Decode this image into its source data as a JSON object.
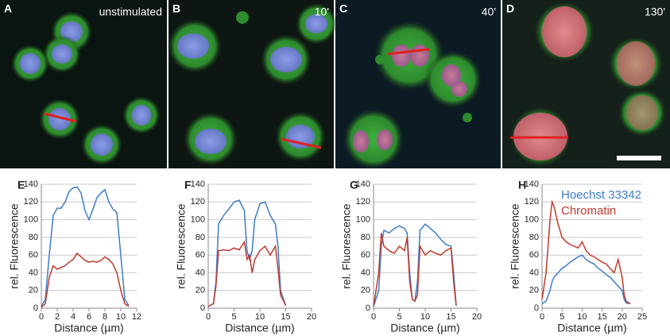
{
  "panels": [
    {
      "label": "A",
      "caption": "unstimulated"
    },
    {
      "label": "B",
      "caption": "10'"
    },
    {
      "label": "C",
      "caption": "40'"
    },
    {
      "label": "D",
      "caption": "130'"
    }
  ],
  "chart_data": [
    {
      "type": "line",
      "title": "E",
      "x_label": "Distance (µm)",
      "y_label": "rel. Fluorescence",
      "x": [
        0,
        0.5,
        1,
        1.5,
        2,
        2.5,
        3,
        3.5,
        4,
        4.5,
        5,
        5.5,
        6,
        6.5,
        7,
        7.5,
        8,
        8.5,
        9,
        9.5,
        10,
        10.5,
        11
      ],
      "series": [
        {
          "name": "Hoechst 33342",
          "color": "#3d7cc9",
          "values": [
            2,
            10,
            60,
            105,
            113,
            113,
            120,
            132,
            136,
            137,
            130,
            110,
            100,
            112,
            125,
            130,
            134,
            120,
            112,
            108,
            60,
            10,
            3
          ]
        },
        {
          "name": "Chromatin",
          "color": "#c0392b",
          "values": [
            1,
            5,
            35,
            48,
            44,
            46,
            48,
            52,
            55,
            62,
            58,
            54,
            52,
            53,
            52,
            54,
            58,
            55,
            50,
            40,
            20,
            5,
            2
          ]
        }
      ],
      "xlim": [
        0,
        12
      ],
      "xticks": [
        0,
        2,
        4,
        6,
        8,
        10,
        12
      ],
      "ylim": [
        0,
        140
      ],
      "yticks": [
        0,
        20,
        40,
        60,
        80,
        100,
        120,
        140
      ],
      "grid": true
    },
    {
      "type": "line",
      "title": "F",
      "x_label": "Distance (µm)",
      "y_label": "rel. Fluorescence",
      "x": [
        0,
        1,
        1.5,
        2,
        3,
        4,
        5,
        6,
        7,
        7.5,
        8,
        8.5,
        9,
        10,
        11,
        12,
        13,
        13.5,
        14,
        15
      ],
      "series": [
        {
          "name": "Hoechst 33342",
          "color": "#3d7cc9",
          "values": [
            2,
            5,
            30,
            95,
            105,
            112,
            120,
            122,
            110,
            65,
            55,
            65,
            100,
            118,
            120,
            105,
            95,
            70,
            20,
            3
          ]
        },
        {
          "name": "Chromatin",
          "color": "#c0392b",
          "values": [
            2,
            5,
            25,
            65,
            66,
            65,
            68,
            66,
            75,
            55,
            60,
            40,
            55,
            65,
            70,
            60,
            70,
            45,
            15,
            3
          ]
        }
      ],
      "xlim": [
        0,
        20
      ],
      "xticks": [
        0,
        5,
        10,
        15,
        20
      ],
      "ylim": [
        0,
        140
      ],
      "yticks": [
        0,
        20,
        40,
        60,
        80,
        100,
        120,
        140
      ],
      "grid": true
    },
    {
      "type": "line",
      "title": "G",
      "x_label": "Distance (µm)",
      "y_label": "rel. Fluorescence",
      "x": [
        0,
        1,
        1.5,
        2,
        3,
        4,
        5,
        6,
        6.5,
        7,
        7.5,
        8,
        8.5,
        9,
        10,
        11,
        12,
        13,
        14,
        15,
        15.5,
        16
      ],
      "series": [
        {
          "name": "Hoechst 33342",
          "color": "#3d7cc9",
          "values": [
            2,
            20,
            70,
            88,
            85,
            90,
            93,
            90,
            85,
            40,
            10,
            8,
            30,
            88,
            95,
            90,
            85,
            78,
            72,
            70,
            40,
            3
          ]
        },
        {
          "name": "Chromatin",
          "color": "#c0392b",
          "values": [
            2,
            40,
            85,
            70,
            65,
            62,
            70,
            65,
            80,
            30,
            10,
            8,
            15,
            70,
            60,
            65,
            62,
            60,
            65,
            68,
            30,
            3
          ]
        }
      ],
      "xlim": [
        0,
        20
      ],
      "xticks": [
        0,
        5,
        10,
        15,
        20
      ],
      "ylim": [
        0,
        140
      ],
      "yticks": [
        0,
        20,
        40,
        60,
        80,
        100,
        120,
        140
      ],
      "grid": true
    },
    {
      "type": "line",
      "title": "H",
      "x_label": "Distance (µm)",
      "y_label": "rel. Fluorescence",
      "legend": true,
      "x": [
        0,
        1,
        2,
        2.5,
        3,
        4,
        5,
        6,
        7,
        8,
        9,
        10,
        11,
        12,
        13,
        14,
        15,
        16,
        17,
        18,
        19,
        20,
        20.5,
        21,
        22
      ],
      "series": [
        {
          "name": "Hoechst 33342",
          "color": "#3d7cc9",
          "values": [
            5,
            8,
            20,
            30,
            35,
            40,
            45,
            48,
            52,
            55,
            58,
            60,
            55,
            52,
            50,
            45,
            42,
            38,
            35,
            30,
            25,
            20,
            10,
            6,
            5
          ]
        },
        {
          "name": "Chromatin",
          "color": "#c0392b",
          "values": [
            10,
            40,
            100,
            120,
            115,
            95,
            80,
            75,
            72,
            70,
            68,
            75,
            65,
            60,
            58,
            55,
            52,
            50,
            45,
            40,
            55,
            35,
            15,
            8,
            5
          ]
        }
      ],
      "xlim": [
        0,
        25
      ],
      "xticks": [
        0,
        5,
        10,
        15,
        20,
        25
      ],
      "ylim": [
        0,
        140
      ],
      "yticks": [
        0,
        20,
        40,
        60,
        80,
        100,
        120,
        140
      ],
      "grid": true
    }
  ]
}
